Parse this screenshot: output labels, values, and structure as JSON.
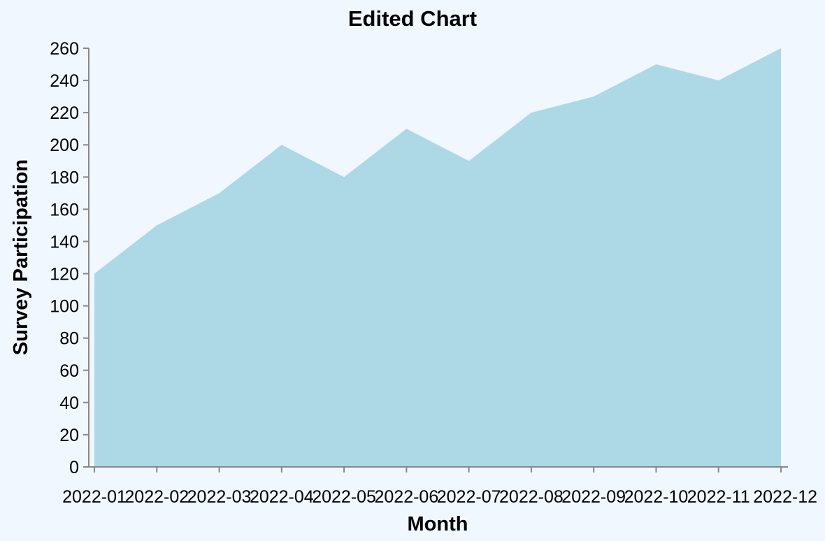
{
  "chart_data": {
    "type": "area",
    "title": "Edited Chart",
    "xlabel": "Month",
    "ylabel": "Survey Participation",
    "categories": [
      "2022-01",
      "2022-02",
      "2022-03",
      "2022-04",
      "2022-05",
      "2022-06",
      "2022-07",
      "2022-08",
      "2022-09",
      "2022-10",
      "2022-11",
      "2022-12"
    ],
    "values": [
      120,
      150,
      170,
      200,
      180,
      210,
      190,
      220,
      230,
      250,
      240,
      260
    ],
    "ylim": [
      0,
      260
    ],
    "yticks": [
      0,
      20,
      40,
      60,
      80,
      100,
      120,
      140,
      160,
      180,
      200,
      220,
      240,
      260
    ],
    "grid": false,
    "legend": "none",
    "colors": {
      "fill": "#add8e6",
      "background": "#f0f7fe",
      "axis": "#888888"
    }
  }
}
